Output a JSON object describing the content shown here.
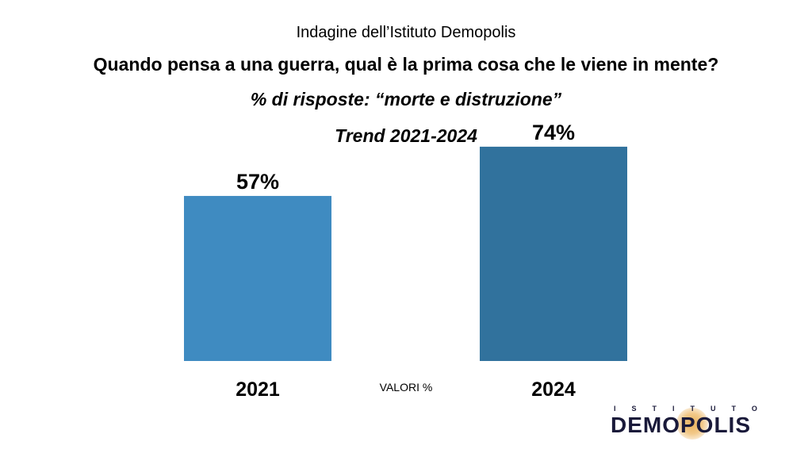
{
  "header": {
    "source": "Indagine dell’Istituto Demopolis",
    "question": "Quando pensa a una guerra, qual è la prima cosa che le viene in mente?",
    "subtitle": "% di risposte: “morte e distruzione”",
    "trend": "Trend 2021-2024"
  },
  "note": "VALORI %",
  "logo": {
    "top": "ISTITUTO",
    "main": "DEMOPOLIS"
  },
  "colors": {
    "bar_2021": "#3f8bc1",
    "bar_2024": "#31729d"
  },
  "chart_data": {
    "type": "bar",
    "categories": [
      "2021",
      "2024"
    ],
    "values": [
      57,
      74
    ],
    "value_labels": [
      "57%",
      "74%"
    ],
    "title": "Trend 2021-2024",
    "xlabel": "",
    "ylabel": "",
    "ylim": [
      0,
      100
    ],
    "grid": false,
    "legend": "none"
  }
}
